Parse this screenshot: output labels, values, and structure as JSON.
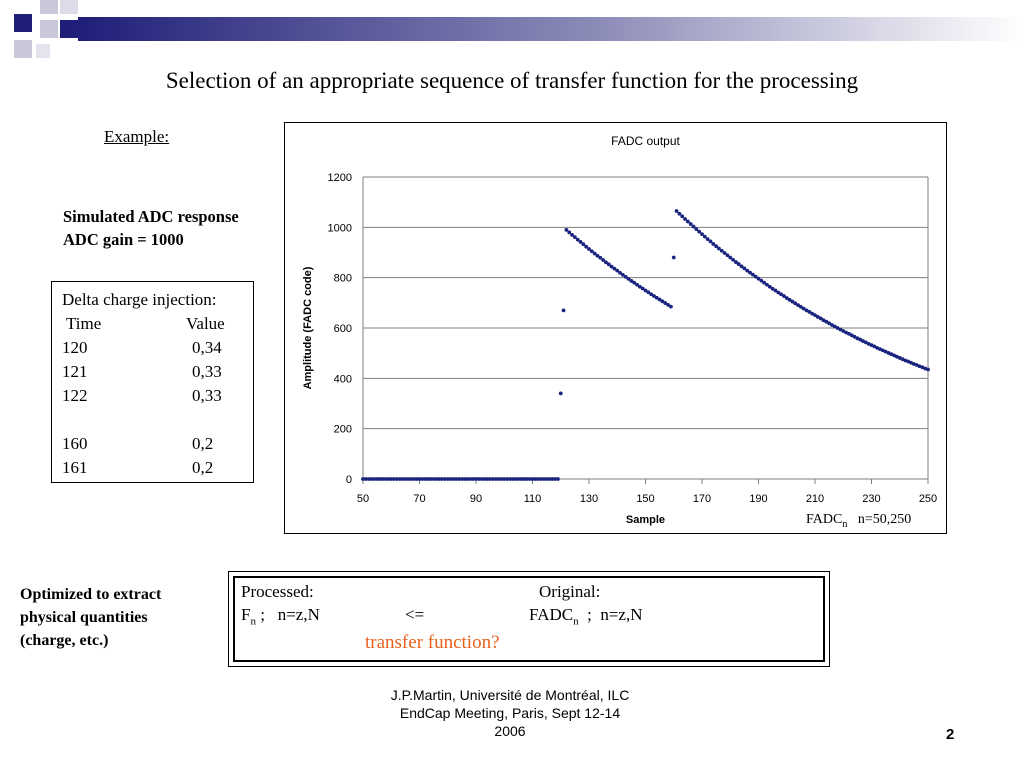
{
  "slide": {
    "title": "Selection of an appropriate sequence of transfer function for the processing",
    "example_label": "Example:",
    "sim_line1": "Simulated ADC response",
    "sim_line2": "ADC gain = 1000",
    "delta_box": {
      "header": "Delta charge injection:",
      "col_time": "Time",
      "col_value": "Value",
      "rows": [
        {
          "time": "120",
          "value": "0,34"
        },
        {
          "time": "121",
          "value": "0,33"
        },
        {
          "time": "122",
          "value": "0,33"
        },
        {
          "time": "160",
          "value": "0,2"
        },
        {
          "time": "161",
          "value": "0,2"
        }
      ]
    },
    "fadc_note": {
      "base": "FADC",
      "sub": "n",
      "range": "n=50,250"
    },
    "optimized": [
      "Optimized to extract",
      "physical quantities",
      "(charge, etc.)"
    ],
    "process_box": {
      "processed": "Processed:",
      "original": "Original:",
      "f_base": "F",
      "f_sub": "n",
      "f_rest": " ;   n=z,N",
      "arrow": "<=",
      "fadc_base": "FADC",
      "fadc_sub": "n",
      "fadc_rest": "  ;  n=z,N",
      "transfer": "transfer function?"
    },
    "footer": [
      "J.P.Martin, Université de Montréal, ILC",
      "EndCap Meeting, Paris, Sept 12-14",
      "2006"
    ],
    "page_number": "2",
    "colors": {
      "series": "#1a237e",
      "accent": "#e8601c",
      "deco_dark": "#1f1f7a"
    }
  },
  "chart_data": {
    "type": "scatter",
    "title": "FADC output",
    "xlabel": "Sample",
    "ylabel": "Amplitude (FADC code)",
    "xlim": [
      50,
      250
    ],
    "ylim": [
      0,
      1200
    ],
    "xticks": [
      50,
      70,
      90,
      110,
      130,
      150,
      170,
      190,
      210,
      230,
      250
    ],
    "yticks": [
      0,
      200,
      400,
      600,
      800,
      1000,
      1200
    ],
    "grid": "horizontal",
    "series": [
      {
        "baseline": {
          "x_from": 50,
          "x_to": 119,
          "y": 0
        },
        "points": [
          [
            120,
            340
          ],
          [
            121,
            670
          ],
          [
            160,
            880
          ]
        ],
        "decay_1": {
          "x_from": 122,
          "x_to": 159,
          "y_start": 990,
          "y_end": 685
        },
        "decay_2": {
          "x_from": 161,
          "x_to": 250,
          "y_start": 1065,
          "y_end": 435
        }
      }
    ]
  }
}
